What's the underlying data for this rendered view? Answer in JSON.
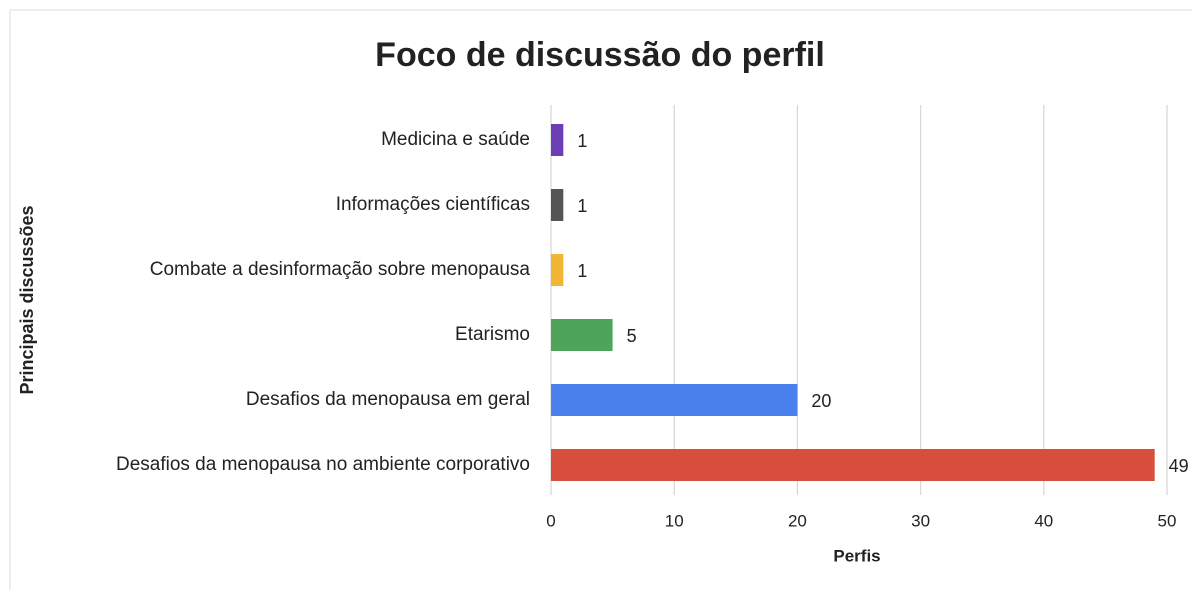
{
  "chart_data": {
    "type": "barh",
    "title": "Foco de discussão do perfil",
    "xlabel": "Perfis",
    "ylabel": "Principais discussões",
    "categories": [
      "Medicina e saúde",
      "Informações científicas",
      "Combate a desinformação sobre menopausa",
      "Etarismo",
      "Desafios da menopausa em geral",
      "Desafios da menopausa no ambiente corporativo"
    ],
    "values": [
      1,
      1,
      1,
      5,
      20,
      49
    ],
    "colors": [
      "#6b3fb3",
      "#555555",
      "#f2b637",
      "#4ea55a",
      "#4a80ec",
      "#d74f3c"
    ],
    "xlim": [
      0,
      50
    ],
    "xticks": [
      0,
      10,
      20,
      30,
      40,
      50
    ],
    "grid": true
  }
}
